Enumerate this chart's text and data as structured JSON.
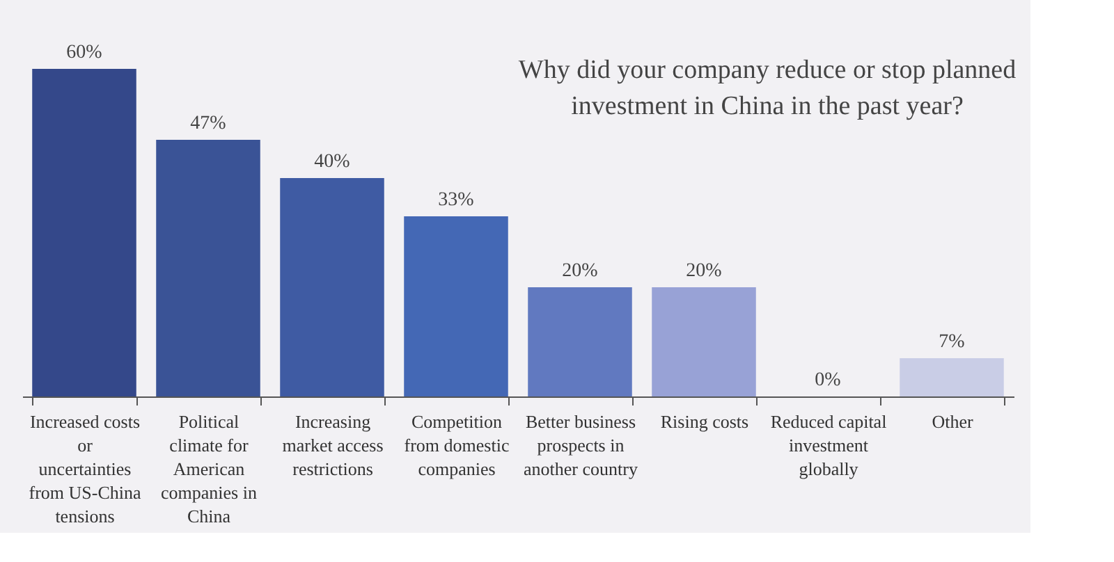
{
  "chart_data": {
    "type": "bar",
    "title": "Why did your company reduce or stop planned investment in China in the past year?",
    "categories": [
      "Increased costs or uncertainties from US-China tensions",
      "Political climate for American companies in China",
      "Increasing market access restrictions",
      "Competition from domestic companies",
      "Better business prospects in another country",
      "Rising costs",
      "Reduced capital investment globally",
      "Other"
    ],
    "values": [
      60,
      47,
      40,
      33,
      20,
      20,
      0,
      7
    ],
    "value_labels": [
      "60%",
      "47%",
      "40%",
      "33%",
      "20%",
      "20%",
      "0%",
      "7%"
    ],
    "colors": [
      "#34488a",
      "#3a5396",
      "#3f5ba3",
      "#4468b5",
      "#6179c0",
      "#98a2d6",
      "#a9b0dc",
      "#c9cde6"
    ],
    "grid": false
  }
}
